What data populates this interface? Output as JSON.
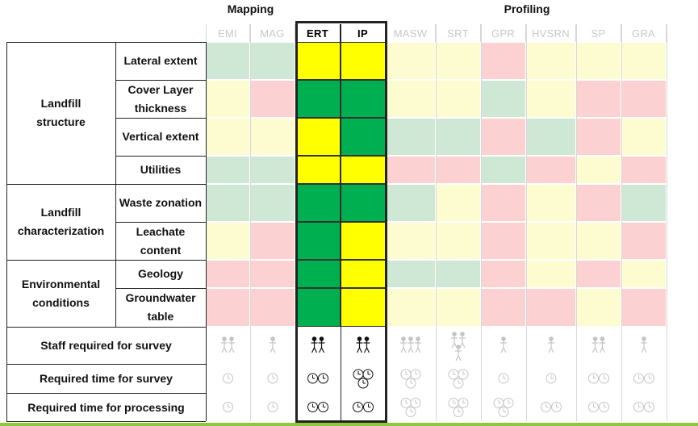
{
  "groups": {
    "mapping": "Mapping",
    "profiling": "Profiling"
  },
  "methods": [
    "EMI",
    "MAG",
    "ERT",
    "IP",
    "MASW",
    "SRT",
    "GPR",
    "HVSRN",
    "SP",
    "GRA"
  ],
  "highlighted": [
    "ERT",
    "IP"
  ],
  "row_groups": [
    {
      "label": "Landfill\nstructure",
      "rows": [
        "Lateral extent",
        "Cover Layer thickness",
        "Vertical extent",
        "Utilities"
      ]
    },
    {
      "label": "Landfill\ncharacterization",
      "rows": [
        "Waste zonation",
        "Leachate content"
      ]
    },
    {
      "label": "Environmental\nconditions",
      "rows": [
        "Geology",
        "Groundwater table"
      ]
    }
  ],
  "row_labels": [
    "Lateral extent",
    "Cover Layer thickness",
    "Vertical extent",
    "Utilities",
    "Waste zonation",
    "Leachate content",
    "Geology",
    "Groundwater table"
  ],
  "colors": {
    "G": "#00b050",
    "Y": "#ffff00",
    "g": "#cfe8d6",
    "y": "#fdfbd0",
    "r": "#fbd1d2"
  },
  "matrix": [
    [
      "g",
      "g",
      "Y",
      "Y",
      "y",
      "y",
      "r",
      "y",
      "y",
      "y"
    ],
    [
      "y",
      "r",
      "G",
      "G",
      "y",
      "y",
      "g",
      "y",
      "r",
      "r"
    ],
    [
      "y",
      "y",
      "Y",
      "G",
      "g",
      "g",
      "r",
      "g",
      "r",
      "y"
    ],
    [
      "g",
      "g",
      "Y",
      "Y",
      "r",
      "r",
      "g",
      "r",
      "y",
      "r"
    ],
    [
      "g",
      "g",
      "G",
      "G",
      "g",
      "y",
      "r",
      "y",
      "r",
      "g"
    ],
    [
      "y",
      "r",
      "G",
      "Y",
      "y",
      "y",
      "r",
      "y",
      "y",
      "r"
    ],
    [
      "r",
      "r",
      "G",
      "Y",
      "g",
      "g",
      "r",
      "y",
      "r",
      "y"
    ],
    [
      "r",
      "r",
      "G",
      "Y",
      "y",
      "y",
      "r",
      "r",
      "y",
      "r"
    ]
  ],
  "bottom_rows": [
    "Staff required for survey",
    "Required time for survey",
    "Required time for processing"
  ],
  "staff": [
    2,
    1,
    2,
    2,
    3,
    3,
    1,
    1,
    2,
    1
  ],
  "survey_time": [
    1,
    1,
    2,
    3,
    3,
    3,
    1,
    1,
    2,
    2
  ],
  "processing_time": [
    1,
    1,
    2,
    2,
    3,
    3,
    3,
    2,
    2,
    2
  ]
}
